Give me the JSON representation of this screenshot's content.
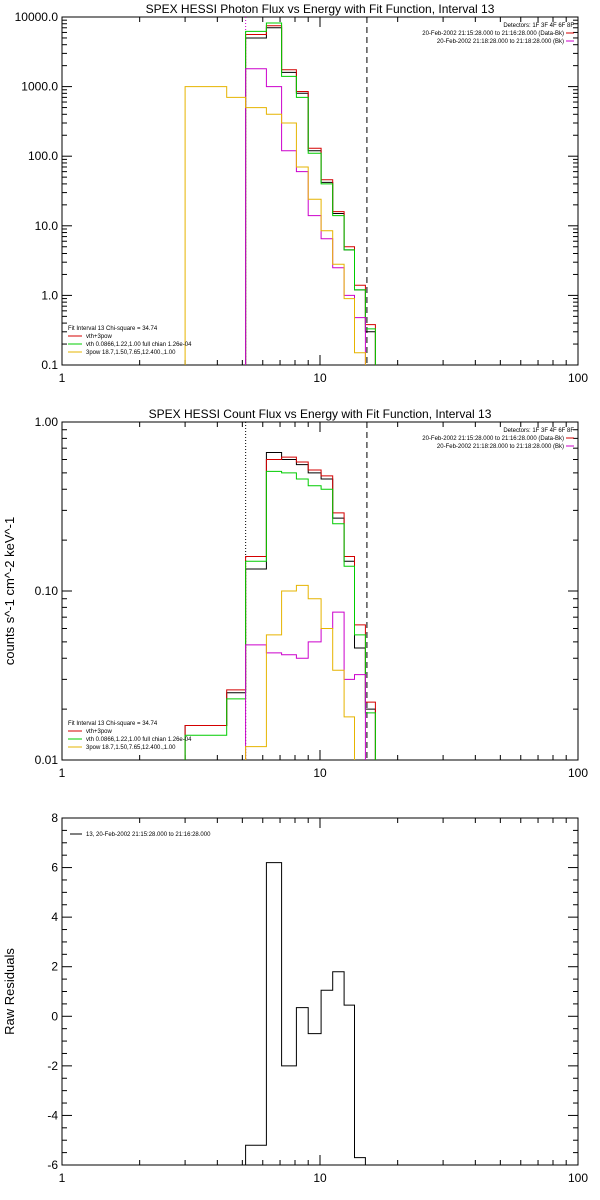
{
  "chart_data": [
    {
      "type": "line",
      "title": "SPEX HESSI Photon Flux vs Energy with Fit Function, Interval 13",
      "ylabel": "",
      "xlabel": "",
      "xscale": "log",
      "yscale": "log",
      "xlim": [
        1,
        100
      ],
      "ylim": [
        0.1,
        10000
      ],
      "xticks": [
        "1",
        "10",
        "100"
      ],
      "yticks": [
        "0.1",
        "1.0",
        "10.0",
        "100.0",
        "1000.0",
        "10000.0"
      ],
      "detectors_label": "Detectors: 1F 3F 4F 6F 8F",
      "time_labels": [
        "20-Feb-2002 21:15:28.000 to 21:16:28.000 (Data-Bk)",
        "20-Feb-2002 21:18:28.000 to 21:18:28.000 (Bk)"
      ],
      "fit_label": "Fit Interval 13   Chi-square = 34.74",
      "legend": [
        {
          "label": "vth+3pow",
          "color": "#d40000"
        },
        {
          "label": "vth 0.0866,1.22,1.00  full chian 1.26e-04",
          "color": "#00cc00"
        },
        {
          "label": "3pow 18.7,1.50,7.65,12.400.,1.00",
          "color": "#e6b400"
        }
      ],
      "vlines": [
        {
          "x": 5.15,
          "style": "dotted",
          "color": "#cc00cc"
        },
        {
          "x": 15.2,
          "style": "dashed",
          "color": "#000000"
        }
      ],
      "edges": [
        3,
        4.35,
        5.15,
        6.2,
        7.1,
        8.1,
        9.0,
        10.1,
        11.2,
        12.4,
        13.6,
        15.0,
        16.4
      ],
      "series": [
        {
          "name": "vth+3pow",
          "color": "#000000",
          "values": [
            null,
            null,
            5000,
            7000,
            1600,
            800,
            120,
            42,
            15,
            4.5,
            1.2,
            0.3
          ]
        },
        {
          "name": "vth+3pow",
          "color": "#d40000",
          "values": [
            null,
            null,
            5600,
            7500,
            1750,
            850,
            130,
            46,
            16,
            5,
            1.4,
            0.38
          ]
        },
        {
          "name": "vth 0.0866,1.22,1.00  full chian 1.26e-04",
          "color": "#00cc00",
          "values": [
            null,
            null,
            6200,
            8200,
            1400,
            700,
            110,
            40,
            14,
            4.5,
            1.2,
            0.33
          ]
        },
        {
          "name": "",
          "color": "#cc00cc",
          "values": [
            null,
            null,
            1800,
            1000,
            120,
            60,
            14,
            6.5,
            2.5,
            1,
            0.48,
            null
          ]
        },
        {
          "name": "3pow 18.7,1.50,7.65,12.400.,1.00",
          "color": "#e6b400",
          "values": [
            1000,
            700,
            500,
            400,
            300,
            70,
            24,
            8.5,
            2.8,
            0.9,
            0.15,
            null
          ]
        }
      ]
    },
    {
      "type": "line",
      "title": "SPEX HESSI Count Flux vs Energy with Fit Function, Interval 13",
      "ylabel": "counts s^-1 cm^-2 keV^-1",
      "xlabel": "",
      "xscale": "log",
      "yscale": "log",
      "xlim": [
        1,
        100
      ],
      "ylim": [
        0.01,
        1.0
      ],
      "xticks": [
        "1",
        "10",
        "100"
      ],
      "yticks": [
        "0.01",
        "0.10",
        "1.00"
      ],
      "detectors_label": "Detectors: 1F 3F 4F 6F 8F",
      "time_labels": [
        "20-Feb-2002 21:15:28.000 to 21:16:28.000 (Data-Bk)",
        "20-Feb-2002 21:18:28.000 to 21:18:28.000 (Bk)"
      ],
      "fit_label": "Fit Interval 13   Chi-square = 34.74",
      "legend": [
        {
          "label": "vth+3pow",
          "color": "#d40000"
        },
        {
          "label": "vth 0.0866,1.22,1.00  full chian 1.26e-04",
          "color": "#00cc00"
        },
        {
          "label": "3pow 18.7,1.50,7.65,12.400.,1.00",
          "color": "#e6b400"
        }
      ],
      "vlines": [
        {
          "x": 5.15,
          "style": "dotted",
          "color": "#000000"
        },
        {
          "x": 15.2,
          "style": "dashed",
          "color": "#000000"
        }
      ],
      "edges": [
        3,
        4.35,
        5.15,
        6.2,
        7.1,
        8.1,
        9.0,
        10.1,
        11.2,
        12.4,
        13.6,
        15.0,
        16.4
      ],
      "series": [
        {
          "name": "",
          "color": "#000000",
          "values": [
            0.016,
            0.025,
            0.135,
            0.66,
            0.6,
            0.56,
            0.5,
            0.46,
            0.27,
            0.15,
            0.046,
            0.02
          ]
        },
        {
          "name": "vth+3pow",
          "color": "#d40000",
          "values": [
            0.016,
            0.026,
            0.16,
            0.6,
            0.62,
            0.58,
            0.52,
            0.48,
            0.29,
            0.16,
            0.063,
            0.022
          ]
        },
        {
          "name": "vth 0.0866,1.22,1.00  full chian 1.26e-04",
          "color": "#00cc00",
          "values": [
            0.014,
            0.023,
            0.15,
            0.51,
            0.5,
            0.46,
            0.42,
            0.4,
            0.25,
            0.14,
            0.055,
            0.019
          ]
        },
        {
          "name": "",
          "color": "#cc00cc",
          "values": [
            null,
            null,
            0.048,
            0.043,
            0.042,
            0.04,
            0.05,
            0.06,
            0.075,
            0.03,
            0.032,
            null
          ]
        },
        {
          "name": "3pow 18.7,1.50,7.65,12.400.,1.00",
          "color": "#e6b400",
          "values": [
            null,
            null,
            0.012,
            0.055,
            0.1,
            0.108,
            0.09,
            0.06,
            0.034,
            0.018,
            null,
            null
          ]
        }
      ]
    },
    {
      "type": "line",
      "title": "",
      "ylabel": "Raw Residuals",
      "xlabel": "",
      "xscale": "log",
      "yscale": "linear",
      "xlim": [
        1,
        100
      ],
      "ylim": [
        -6,
        8
      ],
      "xticks": [
        "1",
        "10",
        "100"
      ],
      "yticks": [
        "-6",
        "-4",
        "-2",
        "0",
        "2",
        "4",
        "6",
        "8"
      ],
      "legend": [
        {
          "label": "13, 20-Feb-2002 21:15:28.000 to 21:16:28.000",
          "color": "#000000"
        }
      ],
      "edges": [
        5.15,
        6.2,
        7.1,
        8.1,
        9.0,
        10.1,
        11.2,
        12.4,
        13.6,
        15.0
      ],
      "series": [
        {
          "name": "13, 20-Feb-2002 21:15:28.000 to 21:16:28.000",
          "color": "#000000",
          "values": [
            -5.2,
            6.2,
            -2.0,
            0.35,
            -0.7,
            1.05,
            1.8,
            0.45,
            -5.7
          ]
        }
      ]
    }
  ]
}
